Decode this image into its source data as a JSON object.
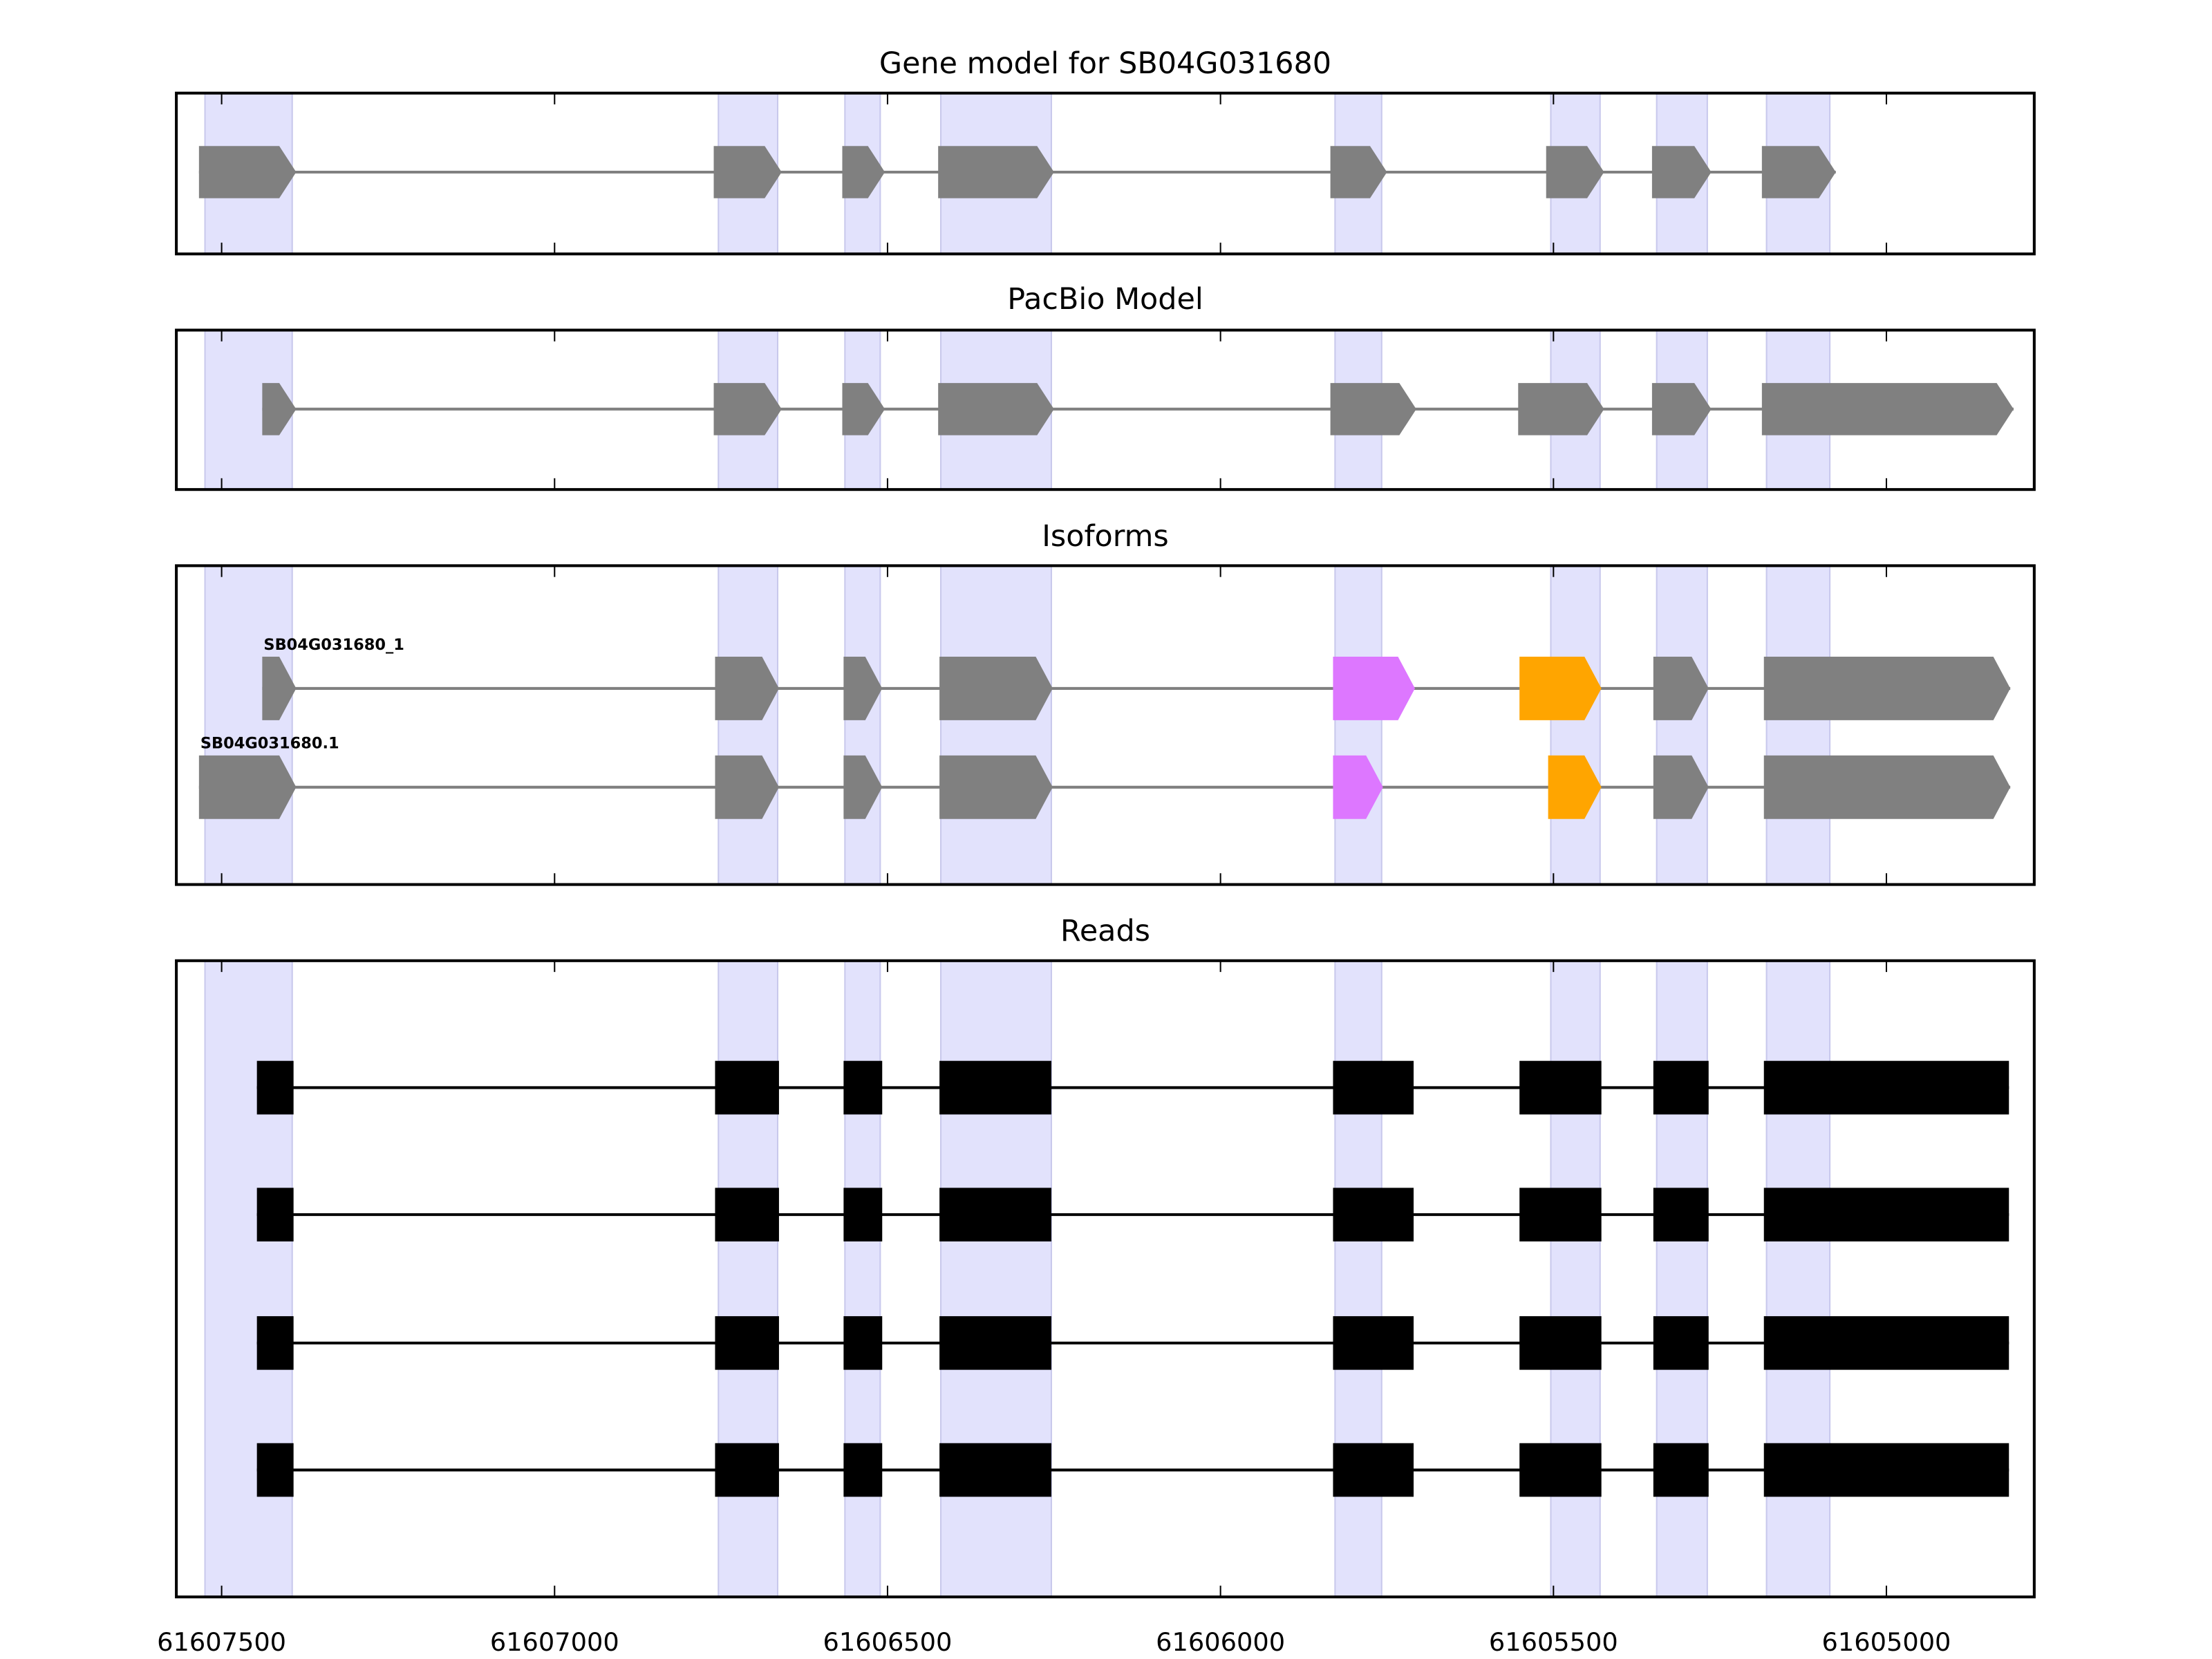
{
  "chart_data": {
    "type": "gene-track",
    "xlim": [
      61607568,
      61604778
    ],
    "x_ticks": [
      61607500,
      61607000,
      61606500,
      61606000,
      61605500,
      61605000
    ],
    "x_tick_labels": [
      "61607500",
      "61607000",
      "61606500",
      "61606000",
      "61605500",
      "61605000"
    ],
    "colors": {
      "exon": "#808080",
      "read": "#000000",
      "shade": "#e2e2fc",
      "alt_a": "#dd77ff",
      "alt_b": "#ffa500"
    },
    "shaded_regions": [
      [
        61607525,
        61607394
      ],
      [
        61606754,
        61606665
      ],
      [
        61606564,
        61606511
      ],
      [
        61606420,
        61606254
      ],
      [
        61605828,
        61605758
      ],
      [
        61605504,
        61605430
      ],
      [
        61605345,
        61605269
      ],
      [
        61605180,
        61605085
      ]
    ],
    "panels": [
      {
        "title": "Gene model for SB04G031680",
        "tracks": [
          {
            "label": "",
            "style": "arrow",
            "exons": [
              [
                61607534,
                61607388,
                "exon"
              ],
              [
                61606761,
                61606659,
                "exon"
              ],
              [
                61606568,
                61606504,
                "exon"
              ],
              [
                61606424,
                61606250,
                "exon"
              ],
              [
                61605835,
                61605750,
                "exon"
              ],
              [
                61605511,
                61605424,
                "exon"
              ],
              [
                61605352,
                61605263,
                "exon"
              ],
              [
                61605187,
                61605076,
                "exon"
              ]
            ]
          }
        ]
      },
      {
        "title": "PacBio Model",
        "tracks": [
          {
            "label": "",
            "style": "arrow",
            "exons": [
              [
                61607439,
                61607388,
                "exon"
              ],
              [
                61606761,
                61606659,
                "exon"
              ],
              [
                61606568,
                61606504,
                "exon"
              ],
              [
                61606424,
                61606250,
                "exon"
              ],
              [
                61605835,
                61605706,
                "exon"
              ],
              [
                61605553,
                61605424,
                "exon"
              ],
              [
                61605352,
                61605263,
                "exon"
              ],
              [
                61605187,
                61604809,
                "exon"
              ]
            ]
          }
        ]
      },
      {
        "title": "Isoforms",
        "tracks": [
          {
            "label": "SB04G031680_1",
            "style": "arrow",
            "exons": [
              [
                61607439,
                61607388,
                "exon"
              ],
              [
                61606759,
                61606663,
                "exon"
              ],
              [
                61606566,
                61606508,
                "exon"
              ],
              [
                61606422,
                61606252,
                "exon"
              ],
              [
                61605831,
                61605708,
                "alt_a"
              ],
              [
                61605551,
                61605428,
                "alt_b"
              ],
              [
                61605350,
                61605267,
                "exon"
              ],
              [
                61605184,
                61604814,
                "exon"
              ]
            ]
          },
          {
            "label": "SB04G031680.1",
            "style": "arrow",
            "exons": [
              [
                61607534,
                61607388,
                "exon"
              ],
              [
                61606759,
                61606663,
                "exon"
              ],
              [
                61606566,
                61606508,
                "exon"
              ],
              [
                61606422,
                61606252,
                "exon"
              ],
              [
                61605831,
                61605756,
                "alt_a"
              ],
              [
                61605508,
                61605428,
                "alt_b"
              ],
              [
                61605350,
                61605267,
                "exon"
              ],
              [
                61605184,
                61604814,
                "exon"
              ]
            ]
          }
        ]
      },
      {
        "title": "Reads",
        "tracks": [
          {
            "label": "",
            "style": "box",
            "exons": [
              [
                61607447,
                61607392,
                "read"
              ],
              [
                61606759,
                61606663,
                "read"
              ],
              [
                61606566,
                61606508,
                "read"
              ],
              [
                61606422,
                61606254,
                "read"
              ],
              [
                61605831,
                61605710,
                "read"
              ],
              [
                61605551,
                61605428,
                "read"
              ],
              [
                61605350,
                61605267,
                "read"
              ],
              [
                61605184,
                61604816,
                "read"
              ]
            ]
          },
          {
            "label": "",
            "style": "box",
            "exons": [
              [
                61607447,
                61607392,
                "read"
              ],
              [
                61606759,
                61606663,
                "read"
              ],
              [
                61606566,
                61606508,
                "read"
              ],
              [
                61606422,
                61606254,
                "read"
              ],
              [
                61605831,
                61605710,
                "read"
              ],
              [
                61605551,
                61605428,
                "read"
              ],
              [
                61605350,
                61605267,
                "read"
              ],
              [
                61605184,
                61604816,
                "read"
              ]
            ]
          },
          {
            "label": "",
            "style": "box",
            "exons": [
              [
                61607447,
                61607392,
                "read"
              ],
              [
                61606759,
                61606663,
                "read"
              ],
              [
                61606566,
                61606508,
                "read"
              ],
              [
                61606422,
                61606254,
                "read"
              ],
              [
                61605831,
                61605710,
                "read"
              ],
              [
                61605551,
                61605428,
                "read"
              ],
              [
                61605350,
                61605267,
                "read"
              ],
              [
                61605184,
                61604816,
                "read"
              ]
            ]
          },
          {
            "label": "",
            "style": "box",
            "exons": [
              [
                61607447,
                61607392,
                "read"
              ],
              [
                61606759,
                61606663,
                "read"
              ],
              [
                61606566,
                61606508,
                "read"
              ],
              [
                61606422,
                61606254,
                "read"
              ],
              [
                61605831,
                61605710,
                "read"
              ],
              [
                61605551,
                61605428,
                "read"
              ],
              [
                61605350,
                61605267,
                "read"
              ],
              [
                61605184,
                61604816,
                "read"
              ]
            ]
          }
        ]
      }
    ]
  }
}
